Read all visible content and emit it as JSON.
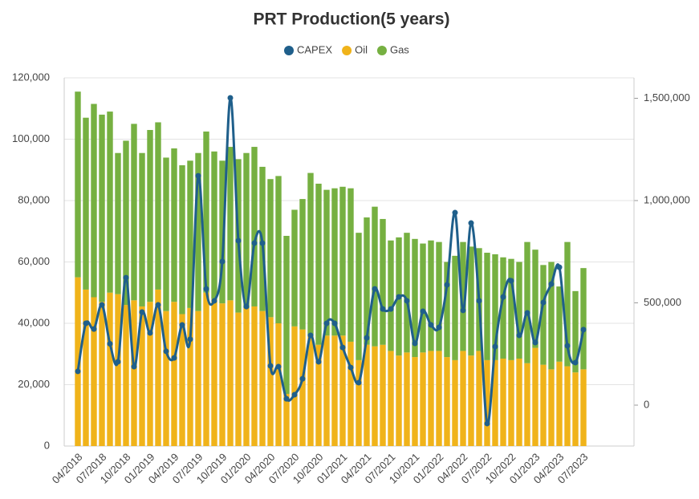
{
  "chart_data": {
    "type": "bar",
    "title": "PRT Production(5 years)",
    "categories": [
      "04/2018",
      null,
      null,
      "07/2018",
      null,
      null,
      "10/2018",
      null,
      null,
      "01/2019",
      null,
      null,
      "04/2019",
      null,
      null,
      "07/2019",
      null,
      null,
      "10/2019",
      null,
      null,
      "01/2020",
      null,
      null,
      "04/2020",
      null,
      null,
      "07/2020",
      null,
      null,
      "10/2020",
      null,
      null,
      "01/2021",
      null,
      null,
      "04/2021",
      null,
      null,
      "07/2021",
      null,
      null,
      "10/2021",
      null,
      null,
      "01/2022",
      null,
      null,
      "04/2022",
      null,
      null,
      "07/2022",
      null,
      null,
      "10/2022",
      null,
      null,
      "01/2023",
      null,
      null,
      "04/2023",
      null,
      null,
      "07/2023"
    ],
    "series": [
      {
        "name": "CAPEX",
        "color": "#1f5f8b",
        "type": "line",
        "axis": "y2",
        "values": [
          165000,
          400000,
          372000,
          490000,
          300000,
          212000,
          623000,
          188000,
          455000,
          353000,
          490000,
          263000,
          231000,
          392000,
          322000,
          1121000,
          568000,
          510000,
          702000,
          1502000,
          804000,
          482000,
          792000,
          792000,
          192000,
          188000,
          31000,
          51000,
          129000,
          341000,
          212000,
          400000,
          400000,
          282000,
          184000,
          110000,
          329000,
          568000,
          470000,
          470000,
          529000,
          510000,
          302000,
          459000,
          392000,
          380000,
          588000,
          941000,
          463000,
          890000,
          510000,
          -90000,
          286000,
          529000,
          608000,
          341000,
          451000,
          306000,
          502000,
          592000,
          674000,
          290000,
          208000,
          369000
        ]
      },
      {
        "name": "Oil",
        "color": "#f0b31a",
        "values": [
          55000,
          51000,
          48500,
          47000,
          50000,
          49500,
          46000,
          47500,
          45500,
          47000,
          51000,
          44000,
          47000,
          43000,
          45000,
          44000,
          50000,
          48000,
          46500,
          47500,
          43500,
          45000,
          45500,
          44000,
          42000,
          40000,
          17000,
          39000,
          38000,
          36000,
          33000,
          36000,
          36000,
          36000,
          34000,
          28000,
          33000,
          32500,
          33000,
          31000,
          29500,
          30500,
          29000,
          30500,
          31000,
          31000,
          29000,
          28000,
          31000,
          29500,
          31000,
          28000,
          28000,
          28500,
          28000,
          28500,
          27000,
          32000,
          26500,
          25000,
          27500,
          26000,
          24000,
          25000
        ]
      },
      {
        "name": "Gas",
        "color": "#76b041",
        "values": [
          60500,
          56000,
          63000,
          61000,
          59000,
          46000,
          53500,
          57500,
          50000,
          56000,
          54500,
          50000,
          50000,
          48500,
          48000,
          51500,
          52500,
          48000,
          46500,
          50000,
          50000,
          50500,
          52000,
          47000,
          45000,
          48000,
          51500,
          38000,
          42500,
          53000,
          52500,
          47500,
          48000,
          48500,
          50000,
          41500,
          41500,
          45500,
          41000,
          36000,
          38500,
          39000,
          38500,
          35500,
          36000,
          35500,
          31000,
          34000,
          35500,
          35500,
          33500,
          35000,
          34500,
          33000,
          33000,
          31500,
          39500,
          32000,
          32500,
          35000,
          24500,
          40500,
          26500,
          33000
        ]
      }
    ],
    "ylim": [
      0,
      120000
    ],
    "yticks": [
      0,
      {
        "value": 20000,
        "label": "20,000"
      },
      {
        "value": 40000,
        "label": "40,000"
      },
      {
        "value": 60000,
        "label": "60,000"
      },
      {
        "value": 80000,
        "label": "80,000"
      },
      {
        "value": 100000,
        "label": "100,000"
      },
      {
        "value": 120000,
        "label": "120,000"
      }
    ],
    "y2lim": [
      -200000,
      1600000
    ],
    "y2ticks": [
      0,
      {
        "value": 500000,
        "label": "500,000"
      },
      {
        "value": 1000000,
        "label": "1,000,000"
      },
      {
        "value": 1500000,
        "label": "1,500,000"
      }
    ],
    "grid": true
  }
}
